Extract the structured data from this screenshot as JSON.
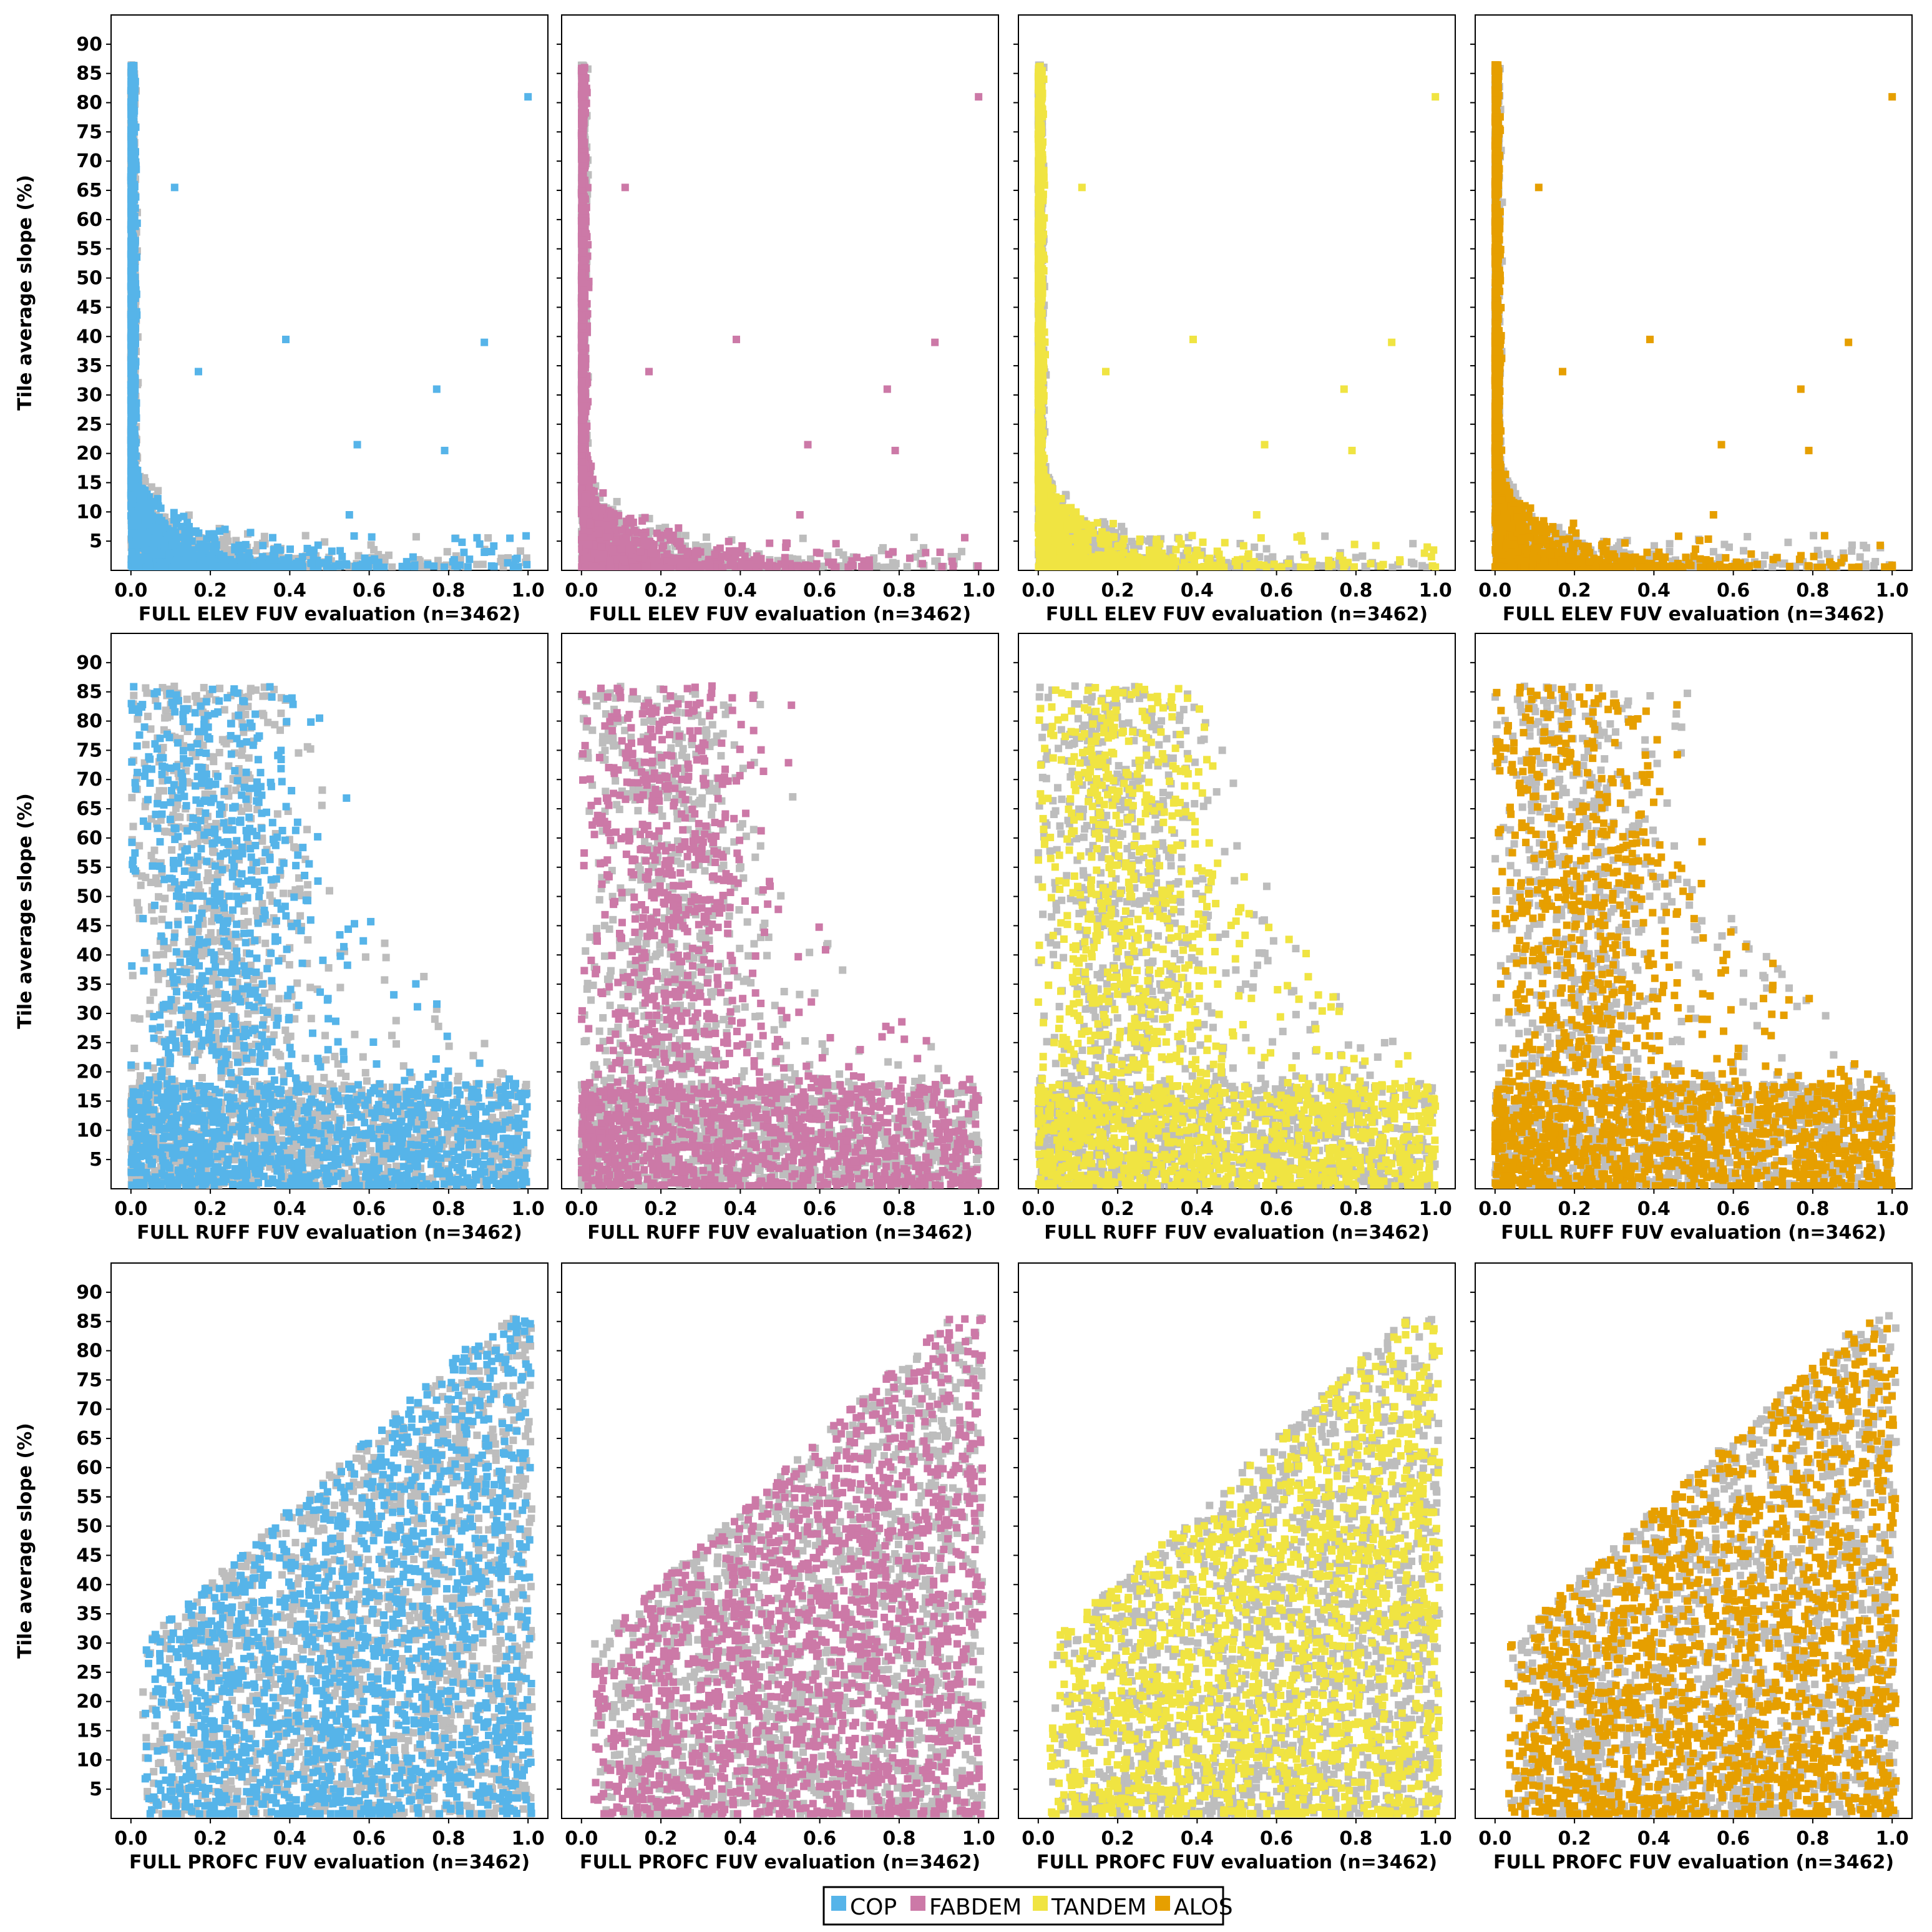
{
  "chart_data": {
    "type": "scatter",
    "layout": "3 rows x 4 columns small multiples",
    "y_label": "Tile average slope (%)",
    "y_ticks": [
      5,
      10,
      15,
      20,
      25,
      30,
      35,
      40,
      45,
      50,
      55,
      60,
      65,
      70,
      75,
      80,
      85,
      90
    ],
    "ylim": [
      0,
      95
    ],
    "x_ticks": [
      "0.0",
      "0.2",
      "0.4",
      "0.6",
      "0.8",
      "1.0"
    ],
    "xlim": [
      -0.05,
      1.05
    ],
    "other_points_color": "#bdbdbd",
    "rows": [
      {
        "metric": "ELEV",
        "xlabel": "FULL ELEV FUV  evaluation  (n=3462)"
      },
      {
        "metric": "RUFF",
        "xlabel": "FULL RUFF FUV  evaluation  (n=3462)"
      },
      {
        "metric": "PROFC",
        "xlabel": "FULL PROFC FUV  evaluation  (n=3462)"
      }
    ],
    "series": [
      {
        "name": "COP",
        "color": "#56b4e9"
      },
      {
        "name": "FABDEM",
        "color": "#cc79a7"
      },
      {
        "name": "TANDEM",
        "color": "#f0e442"
      },
      {
        "name": "ALOS",
        "color": "#e69f00"
      }
    ],
    "highlight_points": [
      {
        "x": 0.39,
        "y": 39.5
      },
      {
        "x": 0.89,
        "y": 39
      },
      {
        "x": 0.17,
        "y": 34
      },
      {
        "x": 0.77,
        "y": 31
      },
      {
        "x": 0.57,
        "y": 21.5
      },
      {
        "x": 0.79,
        "y": 20.5
      },
      {
        "x": 0.55,
        "y": 9.5
      },
      {
        "x": 0.11,
        "y": 65.5
      },
      {
        "x": 1.0,
        "y": 81
      }
    ]
  },
  "legend": {
    "items": [
      {
        "label": "COP",
        "color": "#56b4e9"
      },
      {
        "label": "FABDEM",
        "color": "#cc79a7"
      },
      {
        "label": "TANDEM",
        "color": "#f0e442"
      },
      {
        "label": "ALOS",
        "color": "#e69f00"
      }
    ]
  }
}
